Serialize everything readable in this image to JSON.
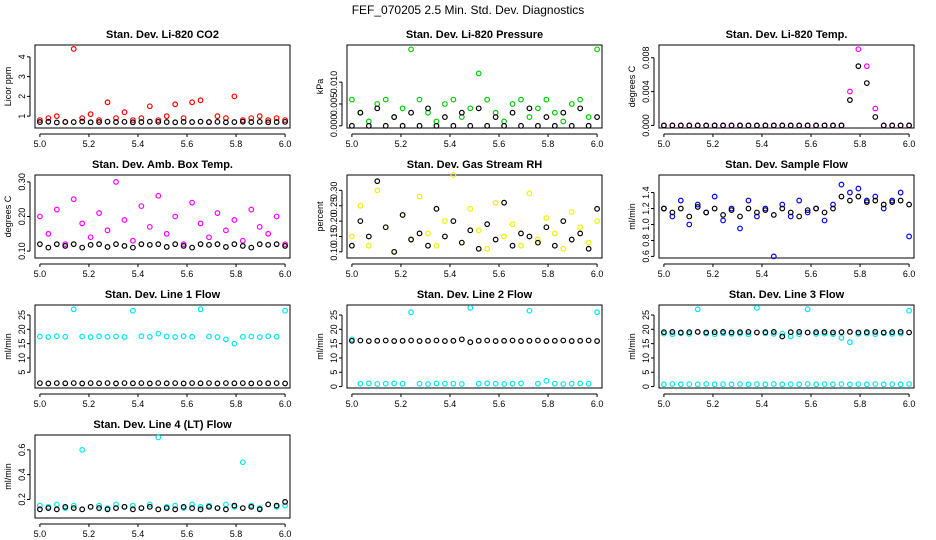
{
  "figure_title": "FEF_070205  2.5 Min. Std. Dev. Diagnostics",
  "colors": {
    "black": "#000000",
    "red": "#ff0000",
    "green": "#00cc00",
    "magenta": "#ff00ff",
    "yellow": "#f0f000",
    "blue": "#0000ff",
    "cyan": "#00e5ee"
  },
  "chart_data": [
    {
      "type": "scatter",
      "title": "Stan. Dev. Li-820 CO2",
      "ylabel": "Licor ppm",
      "xlim": [
        4.98,
        6.02
      ],
      "ylim": [
        0.4,
        4.6
      ],
      "xticks": [
        "5.0",
        "5.2",
        "5.4",
        "5.6",
        "5.8",
        "6.0"
      ],
      "yticks": [
        "1",
        "2",
        "3",
        "4"
      ],
      "series": [
        {
          "name": "std",
          "color": "red",
          "values": [
            0.8,
            0.9,
            1.0,
            0.7,
            4.4,
            0.9,
            1.1,
            0.8,
            1.7,
            0.9,
            1.2,
            0.8,
            0.9,
            1.5,
            0.8,
            1.0,
            1.6,
            0.9,
            1.7,
            1.8,
            0.7,
            1.0,
            0.9,
            2.0,
            0.8,
            0.9,
            1.0,
            0.8,
            0.9,
            0.8
          ]
        },
        {
          "name": "ref",
          "color": "black",
          "values": [
            0.7,
            0.72,
            0.68,
            0.71,
            0.7,
            0.73,
            0.69,
            0.7,
            0.72,
            0.7,
            0.71,
            0.69,
            0.7,
            0.72,
            0.71,
            0.7,
            0.69,
            0.71,
            0.7,
            0.72,
            0.7,
            0.71,
            0.69,
            0.7,
            0.72,
            0.7,
            0.71,
            0.69,
            0.7,
            0.71
          ]
        }
      ]
    },
    {
      "type": "scatter",
      "title": "Stan. Dev. Li-820 Pressure",
      "ylabel": "kPa",
      "xlim": [
        4.98,
        6.02
      ],
      "ylim": [
        -0.0005,
        0.0185
      ],
      "xticks": [
        "5.0",
        "5.2",
        "5.4",
        "5.6",
        "5.8",
        "6.0"
      ],
      "yticks": [
        "0.000",
        "0.005",
        "0.010"
      ],
      "series": [
        {
          "name": "std",
          "color": "green",
          "values": [
            0.006,
            0.003,
            0.001,
            0.005,
            0.006,
            0.002,
            0.004,
            0.0175,
            0.006,
            0.003,
            0.001,
            0.005,
            0.006,
            0.002,
            0.004,
            0.012,
            0.006,
            0.003,
            0.001,
            0.005,
            0.006,
            0.002,
            0.004,
            0.006,
            0.003,
            0.001,
            0.005,
            0.006,
            0.002,
            0.0175
          ]
        },
        {
          "name": "ref",
          "color": "black",
          "values": [
            0.0,
            0.003,
            0.0,
            0.004,
            0.0,
            0.002,
            0.0,
            0.003,
            0.0,
            0.004,
            0.0,
            0.002,
            0.0,
            0.003,
            0.0,
            0.004,
            0.0,
            0.002,
            0.0,
            0.003,
            0.0,
            0.004,
            0.0,
            0.002,
            0.0,
            0.003,
            0.0,
            0.004,
            0.0,
            0.002
          ]
        }
      ]
    },
    {
      "type": "scatter",
      "title": "Stan. Dev. Li-820 Temp.",
      "ylabel": "degrees C",
      "xlim": [
        4.98,
        6.02
      ],
      "ylim": [
        -0.0003,
        0.0095
      ],
      "xticks": [
        "5.0",
        "5.2",
        "5.4",
        "5.6",
        "5.8",
        "6.0"
      ],
      "yticks": [
        "0.000",
        "0.004",
        "0.008"
      ],
      "series": [
        {
          "name": "std",
          "color": "magenta",
          "values": [
            0,
            0,
            0,
            0,
            0,
            0,
            0,
            0,
            0,
            0,
            0,
            0,
            0,
            0,
            0,
            0,
            0,
            0,
            0,
            0,
            0,
            0,
            0.004,
            0.009,
            0.007,
            0.002,
            0,
            0,
            0,
            0
          ]
        },
        {
          "name": "ref",
          "color": "black",
          "values": [
            0,
            0,
            0,
            0,
            0,
            0,
            0,
            0,
            0,
            0,
            0,
            0,
            0,
            0,
            0,
            0,
            0,
            0,
            0,
            0,
            0,
            0,
            0.003,
            0.007,
            0.005,
            0.001,
            0,
            0,
            0,
            0
          ]
        }
      ]
    },
    {
      "type": "scatter",
      "title": "Stan. Dev. Amb. Box Temp.",
      "ylabel": "degrees C",
      "xlim": [
        4.98,
        6.02
      ],
      "ylim": [
        0.08,
        0.32
      ],
      "xticks": [
        "5.0",
        "5.2",
        "5.4",
        "5.6",
        "5.8",
        "6.0"
      ],
      "yticks": [
        "0.10",
        "0.20",
        "0.30"
      ],
      "series": [
        {
          "name": "std",
          "color": "magenta",
          "values": [
            0.2,
            0.15,
            0.22,
            0.12,
            0.25,
            0.18,
            0.14,
            0.21,
            0.16,
            0.3,
            0.19,
            0.13,
            0.23,
            0.17,
            0.26,
            0.15,
            0.2,
            0.12,
            0.24,
            0.18,
            0.14,
            0.21,
            0.16,
            0.19,
            0.13,
            0.22,
            0.17,
            0.15,
            0.2,
            0.12
          ]
        },
        {
          "name": "ref",
          "color": "black",
          "values": [
            0.12,
            0.11,
            0.12,
            0.115,
            0.12,
            0.11,
            0.118,
            0.12,
            0.112,
            0.12,
            0.115,
            0.11,
            0.12,
            0.118,
            0.12,
            0.112,
            0.12,
            0.115,
            0.11,
            0.12,
            0.118,
            0.12,
            0.112,
            0.12,
            0.115,
            0.11,
            0.12,
            0.118,
            0.12,
            0.115
          ]
        }
      ]
    },
    {
      "type": "scatter",
      "title": "Stan. Dev. Gas Stream RH",
      "ylabel": "percent",
      "xlim": [
        4.98,
        6.02
      ],
      "ylim": [
        0.08,
        0.35
      ],
      "xticks": [
        "5.0",
        "5.2",
        "5.4",
        "5.6",
        "5.8",
        "6.0"
      ],
      "yticks": [
        "0.10",
        "0.15",
        "0.20",
        "0.25",
        "0.30"
      ],
      "series": [
        {
          "name": "std",
          "color": "yellow",
          "values": [
            0.15,
            0.25,
            0.12,
            0.3,
            0.18,
            0.1,
            0.22,
            0.14,
            0.28,
            0.16,
            0.12,
            0.2,
            0.35,
            0.13,
            0.24,
            0.17,
            0.11,
            0.26,
            0.15,
            0.19,
            0.12,
            0.29,
            0.14,
            0.21,
            0.16,
            0.11,
            0.23,
            0.18,
            0.13,
            0.2
          ]
        },
        {
          "name": "ref",
          "color": "black",
          "values": [
            0.12,
            0.2,
            0.15,
            0.33,
            0.18,
            0.1,
            0.22,
            0.14,
            0.16,
            0.12,
            0.24,
            0.15,
            0.2,
            0.13,
            0.17,
            0.11,
            0.19,
            0.14,
            0.26,
            0.12,
            0.16,
            0.15,
            0.13,
            0.18,
            0.12,
            0.2,
            0.14,
            0.16,
            0.11,
            0.24
          ]
        }
      ]
    },
    {
      "type": "scatter",
      "title": "Stan. Dev. Sample Flow",
      "ylabel": "ml/min",
      "xlim": [
        4.98,
        6.02
      ],
      "ylim": [
        0.58,
        1.62
      ],
      "xticks": [
        "5.0",
        "5.2",
        "5.4",
        "5.6",
        "5.8",
        "6.0"
      ],
      "yticks": [
        "0.6",
        "0.8",
        "1.0",
        "1.2",
        "1.4"
      ],
      "series": [
        {
          "name": "std",
          "color": "blue",
          "values": [
            1.2,
            1.1,
            1.3,
            1.0,
            1.25,
            1.15,
            1.35,
            1.05,
            1.2,
            0.95,
            1.3,
            1.1,
            1.2,
            0.6,
            1.25,
            1.1,
            1.3,
            1.15,
            1.2,
            1.05,
            1.25,
            1.5,
            1.4,
            1.45,
            1.3,
            1.35,
            1.2,
            1.3,
            1.4,
            0.85
          ]
        },
        {
          "name": "ref",
          "color": "black",
          "values": [
            1.2,
            1.15,
            1.2,
            1.1,
            1.22,
            1.15,
            1.2,
            1.12,
            1.18,
            1.1,
            1.2,
            1.15,
            1.18,
            1.12,
            1.2,
            1.15,
            1.1,
            1.18,
            1.2,
            1.15,
            1.2,
            1.35,
            1.3,
            1.35,
            1.28,
            1.3,
            1.25,
            1.28,
            1.3,
            1.25
          ]
        }
      ]
    },
    {
      "type": "scatter",
      "title": "Stan. Dev. Line 1 Flow",
      "ylabel": "ml/min",
      "xlim": [
        4.98,
        6.02
      ],
      "ylim": [
        -0.5,
        28.5
      ],
      "xticks": [
        "5.0",
        "5.2",
        "5.4",
        "5.6",
        "5.8",
        "6.0"
      ],
      "yticks": [
        "5",
        "10",
        "15",
        "20",
        "25"
      ],
      "series": [
        {
          "name": "std",
          "color": "cyan",
          "values": [
            17.5,
            17.3,
            17.6,
            17.4,
            27.0,
            17.5,
            17.3,
            17.6,
            17.4,
            17.5,
            17.3,
            26.5,
            17.6,
            17.4,
            18.5,
            17.5,
            17.3,
            17.6,
            17.4,
            27.0,
            17.5,
            17.3,
            16.5,
            15.0,
            17.4,
            17.5,
            17.3,
            17.6,
            17.4,
            26.5
          ]
        },
        {
          "name": "ref",
          "color": "black",
          "values": [
            1.2,
            1.1,
            1.2,
            1.15,
            1.2,
            1.1,
            1.2,
            1.15,
            1.2,
            1.1,
            1.2,
            1.15,
            1.2,
            1.1,
            1.2,
            1.15,
            1.2,
            1.1,
            1.2,
            1.15,
            1.2,
            1.1,
            1.2,
            1.15,
            1.2,
            1.1,
            1.2,
            1.15,
            1.2,
            1.1
          ]
        }
      ]
    },
    {
      "type": "scatter",
      "title": "Stan. Dev. Line 2 Flow",
      "ylabel": "ml/min",
      "xlim": [
        4.98,
        6.02
      ],
      "ylim": [
        -0.5,
        28.5
      ],
      "xticks": [
        "5.0",
        "5.2",
        "5.4",
        "5.6",
        "5.8",
        "6.0"
      ],
      "yticks": [
        "0",
        "5",
        "10",
        "15",
        "20",
        "25"
      ],
      "series": [
        {
          "name": "std",
          "color": "cyan",
          "values": [
            16.5,
            1.0,
            1.1,
            0.9,
            1.0,
            1.1,
            1.0,
            26.0,
            1.0,
            0.9,
            1.1,
            1.0,
            1.0,
            0.9,
            27.5,
            1.0,
            1.1,
            1.0,
            0.9,
            1.0,
            1.1,
            26.5,
            1.0,
            2.0,
            1.0,
            0.9,
            1.0,
            1.1,
            1.0,
            26.0
          ]
        },
        {
          "name": "ref",
          "color": "black",
          "values": [
            16.0,
            16.1,
            15.9,
            16.0,
            16.1,
            15.9,
            16.0,
            16.1,
            15.9,
            16.0,
            16.1,
            15.9,
            16.0,
            16.5,
            15.5,
            16.0,
            16.1,
            15.9,
            16.0,
            16.1,
            15.9,
            16.0,
            16.1,
            15.9,
            16.0,
            16.1,
            15.9,
            16.0,
            16.1,
            15.9
          ]
        }
      ]
    },
    {
      "type": "scatter",
      "title": "Stan. Dev. Line 3 Flow",
      "ylabel": "ml/min",
      "xlim": [
        4.98,
        6.02
      ],
      "ylim": [
        -0.5,
        28.5
      ],
      "xticks": [
        "5.0",
        "5.2",
        "5.4",
        "5.6",
        "5.8",
        "6.0"
      ],
      "yticks": [
        "0",
        "5",
        "10",
        "15",
        "20",
        "25"
      ],
      "series": [
        {
          "name": "std",
          "color": "cyan",
          "values": [
            18.5,
            18.3,
            18.6,
            18.4,
            27.0,
            18.5,
            18.3,
            18.6,
            18.4,
            18.5,
            18.3,
            27.5,
            18.6,
            18.4,
            18.5,
            17.5,
            18.3,
            27.0,
            18.4,
            18.5,
            18.3,
            17.0,
            15.5,
            18.4,
            18.5,
            18.3,
            18.6,
            18.4,
            18.5,
            26.5
          ]
        },
        {
          "name": "ref",
          "color": "black",
          "values": [
            19.0,
            19.1,
            18.9,
            19.0,
            19.1,
            18.9,
            19.0,
            19.1,
            18.9,
            19.0,
            19.1,
            18.9,
            19.0,
            19.1,
            17.5,
            19.0,
            19.1,
            18.9,
            19.0,
            19.1,
            18.9,
            19.0,
            19.1,
            18.9,
            19.0,
            19.1,
            18.9,
            19.0,
            19.1,
            18.9
          ]
        },
        {
          "name": "low",
          "color": "cyan",
          "values": [
            0.8,
            0.9,
            0.8,
            0.85,
            0.8,
            0.9,
            0.8,
            0.85,
            0.8,
            0.9,
            0.8,
            0.85,
            0.8,
            0.9,
            0.8,
            0.85,
            0.8,
            0.9,
            0.8,
            0.85,
            0.8,
            0.9,
            0.8,
            0.85,
            0.8,
            0.9,
            0.8,
            0.85,
            0.8,
            0.9
          ]
        }
      ]
    },
    {
      "type": "scatter",
      "title": "Stan. Dev. Line 4 (LT) Flow",
      "ylabel": "ml/min",
      "xlim": [
        4.98,
        6.02
      ],
      "ylim": [
        0.05,
        0.72
      ],
      "xticks": [
        "5.0",
        "5.2",
        "5.4",
        "5.6",
        "5.8",
        "6.0"
      ],
      "yticks": [
        "0.2",
        "0.4",
        "0.6"
      ],
      "series": [
        {
          "name": "std",
          "color": "cyan",
          "values": [
            0.15,
            0.14,
            0.16,
            0.13,
            0.15,
            0.6,
            0.14,
            0.15,
            0.13,
            0.16,
            0.14,
            0.15,
            0.13,
            0.16,
            0.7,
            0.14,
            0.15,
            0.13,
            0.16,
            0.14,
            0.15,
            0.13,
            0.16,
            0.14,
            0.5,
            0.15,
            0.13,
            0.16,
            0.14,
            0.15
          ]
        },
        {
          "name": "ref",
          "color": "black",
          "values": [
            0.12,
            0.13,
            0.12,
            0.14,
            0.13,
            0.12,
            0.14,
            0.13,
            0.12,
            0.13,
            0.14,
            0.12,
            0.13,
            0.14,
            0.12,
            0.13,
            0.12,
            0.14,
            0.13,
            0.12,
            0.14,
            0.13,
            0.12,
            0.15,
            0.13,
            0.14,
            0.12,
            0.16,
            0.15,
            0.18
          ]
        }
      ]
    }
  ]
}
